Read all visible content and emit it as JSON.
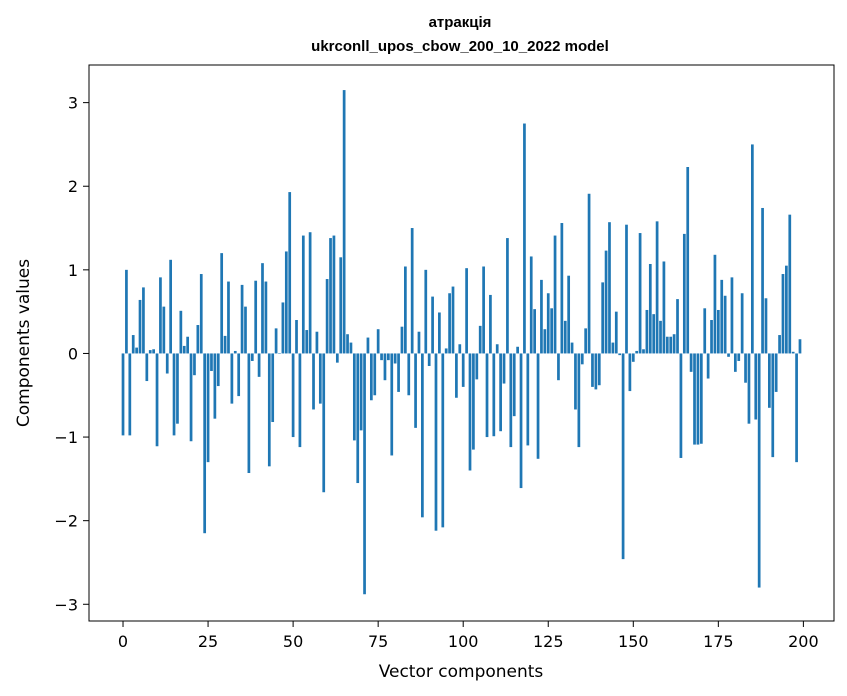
{
  "chart_data": {
    "type": "bar",
    "title": "атракція",
    "subtitle": "ukrconll_upos_cbow_200_10_2022 model",
    "xlabel": "Vector components",
    "ylabel": "Components values",
    "xlim": [
      -10,
      209
    ],
    "ylim": [
      -3.2,
      3.45
    ],
    "xticks": [
      0,
      25,
      50,
      75,
      100,
      125,
      150,
      175,
      200
    ],
    "xtick_labels": [
      "0",
      "25",
      "50",
      "75",
      "100",
      "125",
      "150",
      "175",
      "200"
    ],
    "yticks": [
      -3,
      -2,
      -1,
      0,
      1,
      2,
      3
    ],
    "ytick_labels": [
      "−3",
      "−2",
      "−1",
      "0",
      "1",
      "2",
      "3"
    ],
    "bar_color": "#1f77b4",
    "grid": false,
    "x": [
      0,
      1,
      2,
      3,
      4,
      5,
      6,
      7,
      8,
      9,
      10,
      11,
      12,
      13,
      14,
      15,
      16,
      17,
      18,
      19,
      20,
      21,
      22,
      23,
      24,
      25,
      26,
      27,
      28,
      29,
      30,
      31,
      32,
      33,
      34,
      35,
      36,
      37,
      38,
      39,
      40,
      41,
      42,
      43,
      44,
      45,
      46,
      47,
      48,
      49,
      50,
      51,
      52,
      53,
      54,
      55,
      56,
      57,
      58,
      59,
      60,
      61,
      62,
      63,
      64,
      65,
      66,
      67,
      68,
      69,
      70,
      71,
      72,
      73,
      74,
      75,
      76,
      77,
      78,
      79,
      80,
      81,
      82,
      83,
      84,
      85,
      86,
      87,
      88,
      89,
      90,
      91,
      92,
      93,
      94,
      95,
      96,
      97,
      98,
      99,
      100,
      101,
      102,
      103,
      104,
      105,
      106,
      107,
      108,
      109,
      110,
      111,
      112,
      113,
      114,
      115,
      116,
      117,
      118,
      119,
      120,
      121,
      122,
      123,
      124,
      125,
      126,
      127,
      128,
      129,
      130,
      131,
      132,
      133,
      134,
      135,
      136,
      137,
      138,
      139,
      140,
      141,
      142,
      143,
      144,
      145,
      146,
      147,
      148,
      149,
      150,
      151,
      152,
      153,
      154,
      155,
      156,
      157,
      158,
      159,
      160,
      161,
      162,
      163,
      164,
      165,
      166,
      167,
      168,
      169,
      170,
      171,
      172,
      173,
      174,
      175,
      176,
      177,
      178,
      179,
      180,
      181,
      182,
      183,
      184,
      185,
      186,
      187,
      188,
      189,
      190,
      191,
      192,
      193,
      194,
      195,
      196,
      197,
      198,
      199
    ],
    "values": [
      -0.98,
      1.0,
      -0.98,
      0.22,
      0.07,
      0.64,
      0.79,
      -0.33,
      0.04,
      0.05,
      -1.11,
      0.91,
      0.56,
      -0.24,
      1.12,
      -0.98,
      -0.84,
      0.51,
      0.09,
      0.2,
      -1.05,
      -0.26,
      0.34,
      0.95,
      -2.15,
      -1.3,
      -0.21,
      -0.78,
      -0.39,
      1.2,
      0.21,
      0.86,
      -0.6,
      0.03,
      -0.51,
      0.82,
      0.56,
      -1.43,
      -0.09,
      0.87,
      -0.28,
      1.08,
      0.86,
      -1.35,
      -0.82,
      0.3,
      0.0,
      0.61,
      1.22,
      1.93,
      -1.0,
      0.4,
      -1.12,
      1.41,
      0.28,
      1.45,
      -0.67,
      0.26,
      -0.6,
      -1.66,
      0.89,
      1.38,
      1.41,
      -0.11,
      1.15,
      3.15,
      0.23,
      0.13,
      -1.04,
      -1.55,
      -0.92,
      -2.88,
      0.19,
      -0.56,
      -0.5,
      0.29,
      -0.08,
      -0.32,
      -0.08,
      -1.22,
      -0.12,
      -0.46,
      0.32,
      1.04,
      -0.5,
      1.5,
      -0.89,
      0.26,
      -1.96,
      1.0,
      -0.15,
      0.68,
      -2.12,
      0.49,
      -2.08,
      0.06,
      0.72,
      0.8,
      -0.53,
      0.11,
      -0.4,
      1.02,
      -1.4,
      -1.15,
      -0.31,
      0.33,
      1.04,
      -1.0,
      0.7,
      -0.99,
      0.11,
      -0.93,
      -0.36,
      1.38,
      -1.12,
      -0.75,
      0.08,
      -1.61,
      2.75,
      -1.1,
      1.16,
      0.53,
      -1.26,
      0.88,
      0.29,
      0.72,
      0.54,
      1.41,
      -0.32,
      1.56,
      0.39,
      0.93,
      0.13,
      -0.67,
      -1.12,
      -0.13,
      0.3,
      1.91,
      -0.4,
      -0.43,
      -0.38,
      0.85,
      1.23,
      1.57,
      0.13,
      0.5,
      -0.02,
      -2.46,
      1.54,
      -0.45,
      -0.1,
      0.03,
      1.44,
      0.05,
      0.52,
      1.07,
      0.47,
      1.58,
      0.39,
      1.1,
      0.2,
      0.2,
      0.23,
      0.65,
      -1.25,
      1.43,
      2.23,
      -0.22,
      -1.09,
      -1.09,
      -1.08,
      0.54,
      -0.3,
      0.4,
      1.18,
      0.52,
      0.88,
      0.69,
      -0.04,
      0.91,
      -0.22,
      -0.09,
      0.72,
      -0.35,
      -0.84,
      2.5,
      -0.79,
      -2.8,
      1.74,
      0.66,
      -0.65,
      -1.24,
      -0.46,
      0.22,
      0.95,
      1.05,
      1.66,
      0.02,
      -1.3,
      0.17
    ]
  }
}
